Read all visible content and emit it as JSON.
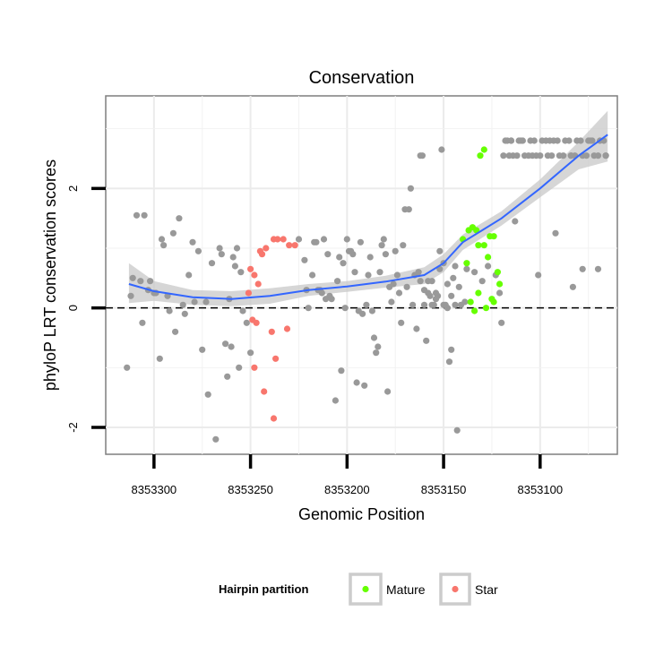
{
  "chart_data": {
    "type": "scatter",
    "title": "Conservation",
    "xlabel": "Genomic Position",
    "ylabel": "phyloP LRT conservation scores",
    "xlim": [
      8353325,
      8353060
    ],
    "ylim": [
      -2.45,
      3.55
    ],
    "x_reversed": true,
    "x_ticks": [
      8353300,
      8353250,
      8353200,
      8353150,
      8353100
    ],
    "x_tick_labels": [
      "8353300",
      "8353250",
      "8353200",
      "8353150",
      "8353100"
    ],
    "y_ticks": [
      -2,
      0,
      2
    ],
    "y_tick_labels": [
      "-2",
      "0",
      "2"
    ],
    "grid": true,
    "reference_line": {
      "y": 0,
      "style": "dashed"
    },
    "legend": {
      "title": "Hairpin partition",
      "position": "bottom",
      "entries": [
        {
          "label": "Mature",
          "color": "#66ff00"
        },
        {
          "label": "Star",
          "color": "#f8766d"
        }
      ]
    },
    "colors": {
      "other": "#999999",
      "smooth": "#3366ff",
      "band": "#c8c8c8"
    },
    "smooth": {
      "x": [
        8353313,
        8353300,
        8353280,
        8353260,
        8353240,
        8353220,
        8353200,
        8353180,
        8353160,
        8353150,
        8353140,
        8353120,
        8353100,
        8353080,
        8353065
      ],
      "y": [
        0.4,
        0.28,
        0.18,
        0.15,
        0.2,
        0.3,
        0.36,
        0.44,
        0.55,
        0.75,
        1.1,
        1.5,
        2.0,
        2.55,
        2.9
      ],
      "lower": [
        0.08,
        0.12,
        0.05,
        0.03,
        0.07,
        0.2,
        0.27,
        0.34,
        0.4,
        0.6,
        0.97,
        1.38,
        1.85,
        2.32,
        2.45
      ],
      "upper": [
        0.75,
        0.45,
        0.3,
        0.28,
        0.33,
        0.4,
        0.45,
        0.54,
        0.68,
        0.9,
        1.23,
        1.62,
        2.15,
        2.78,
        3.3
      ]
    },
    "series": [
      {
        "name": "Mature",
        "color": "#66ff00",
        "x": [
          8353131,
          8353129,
          8353135,
          8353133,
          8353137,
          8353140,
          8353138,
          8353132,
          8353129,
          8353126,
          8353124,
          8353127,
          8353122,
          8353121,
          8353136,
          8353132,
          8353125,
          8353124,
          8353128,
          8353134
        ],
        "y": [
          2.55,
          2.65,
          1.35,
          1.3,
          1.3,
          1.15,
          0.75,
          1.05,
          1.05,
          1.2,
          1.2,
          0.85,
          0.6,
          0.4,
          0.1,
          0.25,
          0.15,
          0.1,
          0.0,
          -0.05
        ]
      },
      {
        "name": "Star",
        "color": "#f8766d",
        "x": [
          8353250,
          8353248,
          8353245,
          8353244,
          8353242,
          8353238,
          8353236,
          8353233,
          8353230,
          8353227,
          8353251,
          8353249,
          8353247,
          8353246,
          8353239,
          8353237,
          8353231,
          8353248,
          8353243,
          8353238
        ],
        "y": [
          0.65,
          0.55,
          0.95,
          0.9,
          1.0,
          1.15,
          1.15,
          1.15,
          1.05,
          1.05,
          0.25,
          -0.2,
          -0.25,
          0.4,
          -0.4,
          -0.85,
          -0.35,
          -1.0,
          -1.4,
          -1.85
        ]
      },
      {
        "name": "Other",
        "color": "#999999",
        "x": [
          8353314,
          8353312,
          8353311,
          8353309,
          8353307,
          8353306,
          8353305,
          8353303,
          8353302,
          8353300,
          8353299,
          8353297,
          8353296,
          8353295,
          8353293,
          8353292,
          8353290,
          8353289,
          8353287,
          8353285,
          8353284,
          8353282,
          8353280,
          8353279,
          8353277,
          8353275,
          8353273,
          8353272,
          8353270,
          8353268,
          8353266,
          8353265,
          8353263,
          8353261,
          8353259,
          8353257,
          8353255,
          8353254,
          8353252,
          8353250,
          8353260,
          8353262,
          8353258,
          8353256,
          8353225,
          8353222,
          8353220,
          8353218,
          8353216,
          8353214,
          8353212,
          8353210,
          8353208,
          8353206,
          8353204,
          8353202,
          8353200,
          8353198,
          8353196,
          8353194,
          8353192,
          8353190,
          8353188,
          8353186,
          8353184,
          8353182,
          8353180,
          8353178,
          8353176,
          8353174,
          8353172,
          8353170,
          8353168,
          8353166,
          8353164,
          8353162,
          8353160,
          8353158,
          8353156,
          8353154,
          8353152,
          8353150,
          8353148,
          8353146,
          8353221,
          8353217,
          8353213,
          8353209,
          8353205,
          8353201,
          8353197,
          8353193,
          8353189,
          8353185,
          8353181,
          8353177,
          8353173,
          8353169,
          8353165,
          8353161,
          8353157,
          8353153,
          8353149,
          8353145,
          8353211,
          8353203,
          8353195,
          8353187,
          8353179,
          8353171,
          8353163,
          8353155,
          8353151,
          8353147,
          8353143,
          8353141,
          8353139,
          8353215,
          8353199,
          8353191,
          8353183,
          8353175,
          8353167,
          8353159,
          8353120,
          8353117,
          8353114,
          8353111,
          8353108,
          8353105,
          8353102,
          8353099,
          8353096,
          8353093,
          8353090,
          8353087,
          8353084,
          8353081,
          8353078,
          8353075,
          8353072,
          8353069,
          8353066,
          8353118,
          8353115,
          8353112,
          8353109,
          8353106,
          8353103,
          8353100,
          8353097,
          8353094,
          8353091,
          8353088,
          8353085,
          8353082,
          8353079,
          8353076,
          8353073,
          8353070,
          8353067,
          8353119,
          8353116,
          8353110,
          8353104,
          8353095,
          8353084,
          8353074,
          8353066,
          8353115,
          8353092,
          8353078,
          8353113,
          8353101,
          8353083,
          8353070,
          8353144,
          8353142,
          8353138,
          8353134,
          8353130,
          8353127,
          8353123,
          8353121,
          8353152,
          8353154,
          8353156,
          8353158,
          8353150,
          8353148,
          8353146,
          8353144,
          8353160,
          8353162
        ],
        "y": [
          -1.0,
          0.2,
          0.5,
          1.55,
          0.45,
          -0.25,
          1.55,
          0.3,
          0.45,
          0.25,
          0.25,
          -0.85,
          1.15,
          1.05,
          0.2,
          -0.05,
          1.25,
          -0.4,
          1.5,
          0.05,
          -0.1,
          0.55,
          1.1,
          0.1,
          0.95,
          -0.7,
          0.1,
          -1.45,
          0.75,
          -2.2,
          1.0,
          0.9,
          -0.6,
          0.15,
          0.85,
          1.0,
          0.6,
          -0.05,
          -0.25,
          -0.75,
          -0.65,
          -1.15,
          0.7,
          -1.0,
          1.15,
          0.8,
          0.0,
          0.55,
          1.1,
          0.3,
          1.15,
          0.9,
          0.15,
          -1.55,
          0.85,
          0.75,
          1.15,
          0.95,
          0.6,
          -0.05,
          -0.1,
          0.05,
          0.85,
          -0.5,
          -0.65,
          1.05,
          0.9,
          0.35,
          0.4,
          0.55,
          -0.25,
          1.65,
          1.65,
          0.05,
          -0.35,
          2.55,
          0.05,
          0.45,
          0.05,
          0.25,
          0.65,
          0.75,
          0.0,
          -0.7,
          0.3,
          1.1,
          0.25,
          0.2,
          0.45,
          0.0,
          0.9,
          1.1,
          0.55,
          -0.75,
          1.15,
          0.1,
          0.25,
          0.35,
          0.55,
          2.55,
          0.2,
          0.2,
          0.05,
          0.5,
          0.15,
          -1.05,
          -1.25,
          -0.05,
          -1.4,
          1.05,
          0.6,
          0.05,
          2.65,
          -0.9,
          -2.05,
          0.05,
          0.1,
          0.3,
          0.95,
          -1.3,
          0.6,
          0.95,
          2.0,
          -0.55,
          -0.25,
          2.8,
          2.55,
          2.8,
          2.55,
          2.8,
          2.55,
          2.8,
          2.55,
          2.8,
          2.55,
          2.8,
          2.55,
          2.8,
          2.55,
          2.8,
          2.55,
          2.8,
          2.55,
          2.8,
          2.8,
          2.55,
          2.8,
          2.55,
          2.8,
          2.55,
          2.8,
          2.55,
          2.8,
          2.55,
          2.8,
          2.55,
          2.8,
          2.55,
          2.8,
          2.55,
          2.8,
          2.55,
          2.55,
          2.8,
          2.55,
          2.8,
          2.55,
          2.8,
          2.55,
          2.8,
          1.25,
          0.65,
          1.45,
          0.55,
          0.35,
          0.65,
          0.7,
          0.35,
          0.65,
          0.6,
          0.45,
          0.7,
          0.55,
          0.25,
          0.95,
          0.15,
          0.45,
          0.25,
          0.05,
          0.4,
          0.2,
          0.05,
          0.3,
          0.45
        ]
      }
    ]
  }
}
